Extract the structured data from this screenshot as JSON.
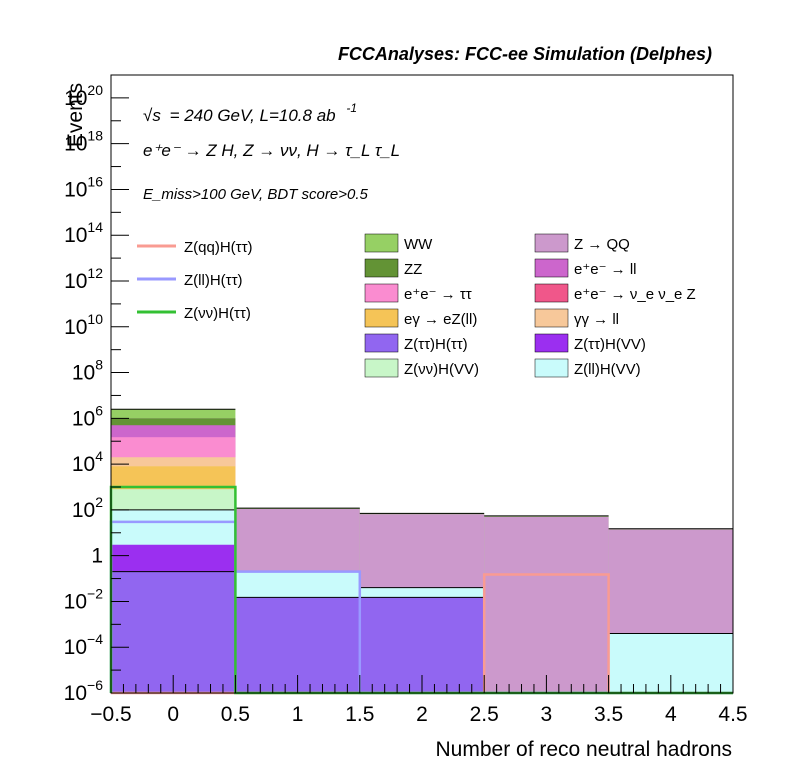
{
  "header": {
    "title": "FCCAnalyses: FCC-ee Simulation (Delphes)"
  },
  "annotations": {
    "energy_prefix": "√s",
    "energy": "= 240 GeV, L=10.8 ab",
    "lumi_exp": "-1",
    "process": "e⁺e⁻ → Z H, Z → νν, H → τ_L τ_L",
    "selection": "E_miss>100 GeV, BDT score>0.5"
  },
  "chart_data": {
    "type": "bar",
    "title": "",
    "xlabel": "Number of reco neutral hadrons",
    "ylabel": "Events",
    "log_y": true,
    "xlim": [
      -0.5,
      4.5
    ],
    "ylim": [
      1e-06,
      1e+21
    ],
    "x_ticks": [
      "−0.5",
      "0",
      "0.5",
      "1",
      "1.5",
      "2",
      "2.5",
      "3",
      "3.5",
      "4",
      "4.5"
    ],
    "y_ticks": [
      "10^-6",
      "10^-4",
      "10^-2",
      "1",
      "10^2",
      "10^4",
      "10^6",
      "10^8",
      "10^10",
      "10^12",
      "10^14",
      "10^16",
      "10^18",
      "10^20"
    ],
    "bin_edges": [
      -0.5,
      0.5,
      1.5,
      2.5,
      3.5,
      4.5
    ],
    "stacked_totals": [
      2500000,
      120,
      70,
      55,
      15
    ],
    "stack_layers": [
      {
        "name": "Z(ττ)H(ττ)",
        "color": "#9166f0",
        "cumulative": [
          0.2,
          0.015,
          0.015,
          0,
          0
        ]
      },
      {
        "name": "Z(ττ)H(VV)",
        "color": "#9b2ff0",
        "cumulative": [
          3,
          0.015,
          0.015,
          0,
          0
        ]
      },
      {
        "name": "Z(ll)H(VV)",
        "color": "#c9fbfb",
        "cumulative": [
          100,
          0.2,
          0.04,
          0,
          0.0004
        ]
      },
      {
        "name": "Z(νν)H(VV)",
        "color": "#c8f6c8",
        "cumulative": [
          800,
          0.2,
          0.04,
          0,
          0.0004
        ]
      },
      {
        "name": "eγ → eZ(ll)",
        "color": "#f5c457",
        "cumulative": [
          8000,
          0.2,
          0.04,
          0,
          0.0004
        ]
      },
      {
        "name": "γγ → ll",
        "color": "#f7c89a",
        "cumulative": [
          20000,
          0.2,
          0.04,
          0,
          0.0004
        ]
      },
      {
        "name": "e⁺e⁻ → ττ",
        "color": "#fa8cd0",
        "cumulative": [
          150000,
          0.2,
          0.04,
          0,
          0.0004
        ]
      },
      {
        "name": "e⁺e⁻ → ll",
        "color": "#cc66cc",
        "cumulative": [
          500000,
          0.2,
          0.04,
          0,
          0.0004
        ]
      },
      {
        "name": "ZZ",
        "color": "#639335",
        "cumulative": [
          1000000,
          0.2,
          0.04,
          0,
          0.0004
        ]
      },
      {
        "name": "Z → QQ",
        "color": "#cc99cc",
        "cumulative": [
          1000000,
          110,
          65,
          50,
          14
        ]
      },
      {
        "name": "WW",
        "color": "#96d064",
        "cumulative": [
          2500000,
          120,
          70,
          55,
          15
        ]
      }
    ],
    "signal_series": [
      {
        "name": "Z(qq)H(ττ)",
        "color": "#f99b92",
        "values": [
          1e-06,
          1e-06,
          1e-06,
          0.15,
          1e-06
        ]
      },
      {
        "name": "Z(ll)H(ττ)",
        "color": "#9999ff",
        "values": [
          30,
          0.2,
          1e-06,
          1e-06,
          1e-06
        ]
      },
      {
        "name": "Z(νν)H(ττ)",
        "color": "#33c033",
        "values": [
          1000,
          1e-06,
          1e-06,
          1e-06,
          1e-06
        ]
      }
    ],
    "legend": {
      "placement": "top",
      "signals": [
        "Z(qq)H(ττ)",
        "Z(ll)H(ττ)",
        "Z(νν)H(ττ)"
      ],
      "col1": [
        {
          "label": "WW",
          "color": "#96d064"
        },
        {
          "label": "ZZ",
          "color": "#639335"
        },
        {
          "label": "e⁺e⁻ → ττ",
          "color": "#fa8cd0"
        },
        {
          "label": "eγ → eZ(ll)",
          "color": "#f5c457"
        },
        {
          "label": "Z(ττ)H(ττ)",
          "color": "#9166f0"
        },
        {
          "label": "Z(νν)H(VV)",
          "color": "#c8f6c8"
        }
      ],
      "col2": [
        {
          "label": "Z → QQ",
          "color": "#cc99cc"
        },
        {
          "label": "e⁺e⁻ → ll",
          "color": "#cc66cc"
        },
        {
          "label": "e⁺e⁻ → ν_e ν_e Z",
          "color": "#f0578a"
        },
        {
          "label": "γγ → ll",
          "color": "#f7c89a"
        },
        {
          "label": "Z(ττ)H(VV)",
          "color": "#9b2ff0"
        },
        {
          "label": "Z(ll)H(VV)",
          "color": "#c9fbfb"
        }
      ]
    }
  }
}
